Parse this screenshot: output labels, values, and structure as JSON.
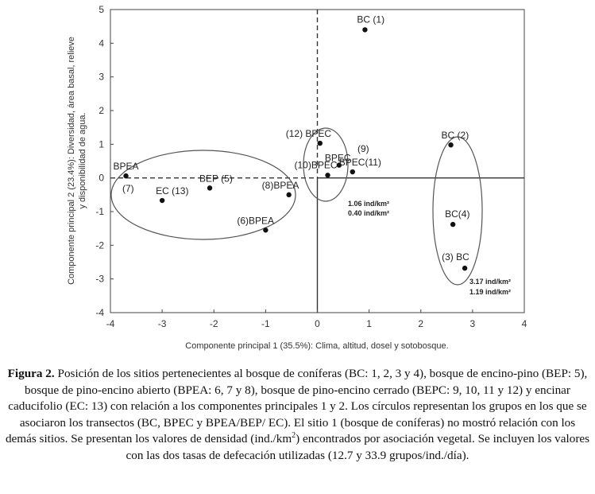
{
  "chart_data": {
    "type": "scatter",
    "xlabel": "Componente principal 1 (35.5%): Clima, altitud, dosel y sotobosque.",
    "ylabel_lines": [
      "Componente principal 2 (23.4%): Diversidad, área basal, relieve",
      "y disponibilidad de agua."
    ],
    "xlim": [
      -4,
      4
    ],
    "ylim": [
      -4,
      5
    ],
    "xticks": [
      "-4",
      "-3",
      "-2",
      "-1",
      "0",
      "1",
      "2",
      "3",
      "4"
    ],
    "yticks": [
      "-4",
      "-3",
      "-2",
      "-1",
      "0",
      "1",
      "2",
      "3",
      "4",
      "5"
    ],
    "grid": false,
    "points": [
      {
        "label": "BC (1)",
        "x": 0.92,
        "y": 4.4
      },
      {
        "label": "BC (2)",
        "x": 2.58,
        "y": 0.98
      },
      {
        "label": "BC(4)",
        "x": 2.62,
        "y": -1.38
      },
      {
        "label": "(3) BC",
        "x": 2.85,
        "y": -2.68
      },
      {
        "label": "BPEA",
        "x": -3.7,
        "y": 0.06
      },
      {
        "label": "(7)",
        "x": null,
        "y": null
      },
      {
        "label": "EC (13)",
        "x": -3.0,
        "y": -0.67
      },
      {
        "label": "BEP (5)",
        "x": -2.08,
        "y": -0.3
      },
      {
        "label": "(8)BPEA",
        "x": -0.55,
        "y": -0.5
      },
      {
        "label": "(6)BPEA",
        "x": -1.0,
        "y": -1.55
      },
      {
        "label": "(12) BPEC",
        "x": 0.05,
        "y": 1.03
      },
      {
        "label": "(10)BPEC",
        "x": 0.2,
        "y": 0.08
      },
      {
        "label": "BPEC",
        "x": 0.42,
        "y": 0.38
      },
      {
        "label": "(9)",
        "x": null,
        "y": null
      },
      {
        "label": "BPEC(11)",
        "x": 0.68,
        "y": 0.18
      }
    ],
    "reference_lines": {
      "x": 0,
      "y": 0
    },
    "density_labels": [
      {
        "line1": "1.06 ind/km²",
        "line2": "0.40 ind/km²"
      },
      {
        "line1": "3.17 ind/km²",
        "line2": "1.19 ind/km²"
      }
    ]
  },
  "caption": {
    "title": "Figura 2.",
    "text_before_sup": " Posición de los sitios pertenecientes al bosque de coníferas (BC: 1, 2, 3 y 4), bosque de encino-pino (BEP: 5), bosque de pino-encino abierto (BPEA: 6, 7 y 8), bosque de pino-encino cerrado (BEPC: 9, 10, 11 y 12) y encinar caducifolio (EC: 13) con relación a los componentes principales 1 y 2. Los círculos representan los grupos en los que se asociaron los transectos (BC, BPEC y BPEA/BEP/ EC). El sitio 1 (bosque de coníferas) no mostró relación con los demás sitios. Se presentan los valores de densidad (ind./km",
    "sup": "2",
    "text_after_sup": ") encontrados por asociación vegetal. Se incluyen los valores con las dos tasas de defecación utilizadas (12.7 y 33.9 grupos/ind./día)."
  }
}
